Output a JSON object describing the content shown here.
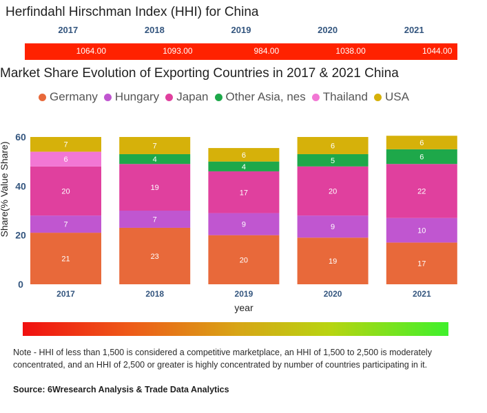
{
  "hhi": {
    "title": "Herfindahl Hirschman Index (HHI) for China",
    "years": [
      "2017",
      "2018",
      "2019",
      "2020",
      "2021"
    ],
    "values": [
      "1064.00",
      "1093.00",
      "984.00",
      "1038.00",
      "1044.00"
    ],
    "bar_color": "#ff2200"
  },
  "chart_data": {
    "type": "bar",
    "stacked": true,
    "title": "Market Share Evolution of Exporting Countries in 2017 & 2021 China",
    "xlabel": "year",
    "ylabel": "Share(% Value Share)",
    "ylim": [
      0,
      60
    ],
    "yticks": [
      "0",
      "20",
      "40",
      "60"
    ],
    "categories": [
      "2017",
      "2018",
      "2019",
      "2020",
      "2021"
    ],
    "series": [
      {
        "name": "Germany",
        "color": "#e8693a",
        "values": [
          21,
          23,
          20,
          19,
          17
        ]
      },
      {
        "name": "Hungary",
        "color": "#c056d0",
        "values": [
          7,
          7,
          9,
          9,
          10
        ]
      },
      {
        "name": "Japan",
        "color": "#e0409e",
        "values": [
          20,
          19,
          17,
          20,
          22
        ]
      },
      {
        "name": "Other Asia, nes",
        "color": "#1ea84a",
        "values": [
          0,
          4,
          4,
          5,
          6
        ]
      },
      {
        "name": "Thailand",
        "color": "#f277d4",
        "values": [
          6,
          0,
          0,
          0,
          0
        ]
      },
      {
        "name": "USA",
        "color": "#d6b10a",
        "values": [
          7,
          7,
          6,
          6,
          6
        ]
      }
    ],
    "totals": [
      60,
      60,
      55.5,
      60,
      60.5
    ]
  },
  "note": "Note - HHI of less than 1,500 is considered a competitive marketplace, an HHI of 1,500 to 2,500 is moderately concentrated, and an HHI of 2,500 or greater is highly concentrated by number of countries participating in it.",
  "source": "Source: 6Wresearch Analysis & Trade Data Analytics"
}
